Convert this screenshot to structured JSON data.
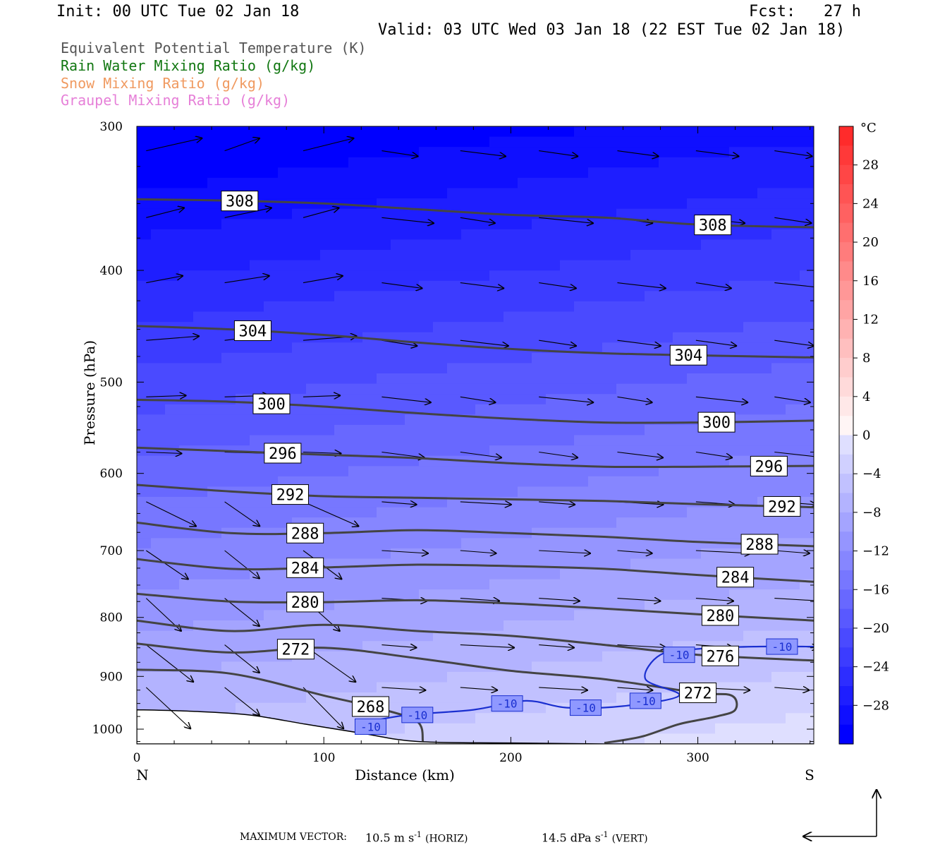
{
  "header": {
    "init": "Init: 00 UTC Tue 02 Jan 18",
    "fcst": "Fcst:   27 h",
    "valid": "Valid: 03 UTC Wed 03 Jan 18 (22 EST Tue 02 Jan 18)"
  },
  "legend": [
    {
      "label": "Equivalent Potential Temperature (K)",
      "color": "#555555"
    },
    {
      "label": "Rain Water Mixing Ratio (g/kg)",
      "color": "#117711"
    },
    {
      "label": "Snow Mixing Ratio (g/kg)",
      "color": "#f09a60"
    },
    {
      "label": "Graupel Mixing Ratio (g/kg)",
      "color": "#e680d8"
    }
  ],
  "footer": {
    "max_vector_label": "MAXIMUM VECTOR:",
    "horiz_value": "10.5 m s",
    "horiz_unit": "(HORIZ)",
    "vert_value": "14.5 dPa s",
    "vert_unit": "(VERT)",
    "exponent": "-1"
  },
  "chart_data": {
    "type": "cross-section contour",
    "xlabel": "Distance (km)",
    "ylabel": "Pressure (hPa)",
    "x_end_labels": {
      "left": "N",
      "right": "S"
    },
    "xlim": [
      0,
      362
    ],
    "ylim": [
      300,
      1030
    ],
    "y_scale": "log",
    "x_ticks": [
      0,
      100,
      200,
      300
    ],
    "y_ticks": [
      300,
      400,
      500,
      600,
      700,
      800,
      900,
      1000
    ],
    "colorbar": {
      "unit": "°C",
      "tick_labels": [
        28,
        24,
        20,
        16,
        12,
        8,
        4,
        0,
        -4,
        -8,
        -12,
        -16,
        -20,
        -24,
        -28
      ],
      "levels": [
        -32,
        -30,
        -28,
        -26,
        -24,
        -22,
        -20,
        -18,
        -16,
        -14,
        -12,
        -10,
        -8,
        -6,
        -4,
        -2,
        0,
        2,
        4,
        6,
        8,
        10,
        12,
        14,
        16,
        18,
        20,
        22,
        24,
        26,
        28,
        30,
        32
      ]
    },
    "theta_e_contours": [
      {
        "value": 308,
        "x": [
          0,
          50,
          100,
          150,
          200,
          250,
          300,
          362
        ],
        "p": [
          347,
          348,
          350,
          354,
          358,
          360,
          365,
          367
        ]
      },
      {
        "value": 304,
        "x": [
          0,
          50,
          100,
          150,
          200,
          250,
          300,
          362
        ],
        "p": [
          447,
          450,
          455,
          462,
          468,
          472,
          474,
          476
        ]
      },
      {
        "value": 300,
        "x": [
          0,
          50,
          100,
          150,
          200,
          250,
          300,
          362
        ],
        "p": [
          518,
          520,
          525,
          532,
          538,
          542,
          542,
          540
        ]
      },
      {
        "value": 296,
        "x": [
          0,
          50,
          100,
          150,
          200,
          250,
          300,
          362
        ],
        "p": [
          570,
          574,
          578,
          582,
          588,
          592,
          592,
          591
        ]
      },
      {
        "value": 292,
        "x": [
          0,
          50,
          100,
          150,
          200,
          250,
          300,
          362
        ],
        "p": [
          614,
          622,
          628,
          630,
          632,
          634,
          638,
          642
        ]
      },
      {
        "value": 288,
        "x": [
          0,
          50,
          100,
          150,
          200,
          250,
          300,
          362
        ],
        "p": [
          662,
          676,
          676,
          672,
          676,
          681,
          688,
          694
        ]
      },
      {
        "value": 284,
        "x": [
          0,
          50,
          100,
          150,
          200,
          250,
          300,
          362
        ],
        "p": [
          712,
          726,
          724,
          720,
          722,
          726,
          735,
          745
        ]
      },
      {
        "value": 280,
        "x": [
          0,
          50,
          100,
          150,
          200,
          250,
          300,
          362
        ],
        "p": [
          763,
          775,
          776,
          773,
          778,
          786,
          795,
          805
        ]
      },
      {
        "value": 276,
        "x": [
          0,
          50,
          100,
          150,
          200,
          250,
          300,
          362
        ],
        "p": [
          805,
          822,
          812,
          822,
          830,
          845,
          862,
          872
        ]
      },
      {
        "value": 272,
        "x": [
          0,
          50,
          100,
          150,
          200,
          250,
          300,
          318,
          320,
          310,
          290,
          270,
          250
        ],
        "p": [
          843,
          858,
          850,
          868,
          890,
          905,
          930,
          935,
          962,
          975,
          990,
          1015,
          1028
        ]
      },
      {
        "value": 268,
        "x": [
          0,
          50,
          100,
          130,
          150,
          153
        ],
        "p": [
          888,
          895,
          935,
          960,
          985,
          1025
        ]
      }
    ],
    "temperature_contours": [
      {
        "value": -10,
        "x": [
          118,
          125,
          145,
          180,
          208,
          230,
          260,
          290,
          272,
          280,
          300,
          330,
          362
        ],
        "p": [
          995,
          985,
          972,
          962,
          945,
          958,
          955,
          935,
          905,
          862,
          852,
          848,
          848
        ]
      }
    ],
    "terrain_surface_hPa": {
      "x": [
        0,
        30,
        60,
        90,
        120,
        150,
        200,
        250,
        300,
        362
      ],
      "p": [
        962,
        965,
        972,
        990,
        1008,
        1025,
        1028,
        1030,
        1030,
        1030
      ]
    },
    "wind_vectors_note": "circulation vectors (horizontal m/s, vertical dPa/s)"
  }
}
